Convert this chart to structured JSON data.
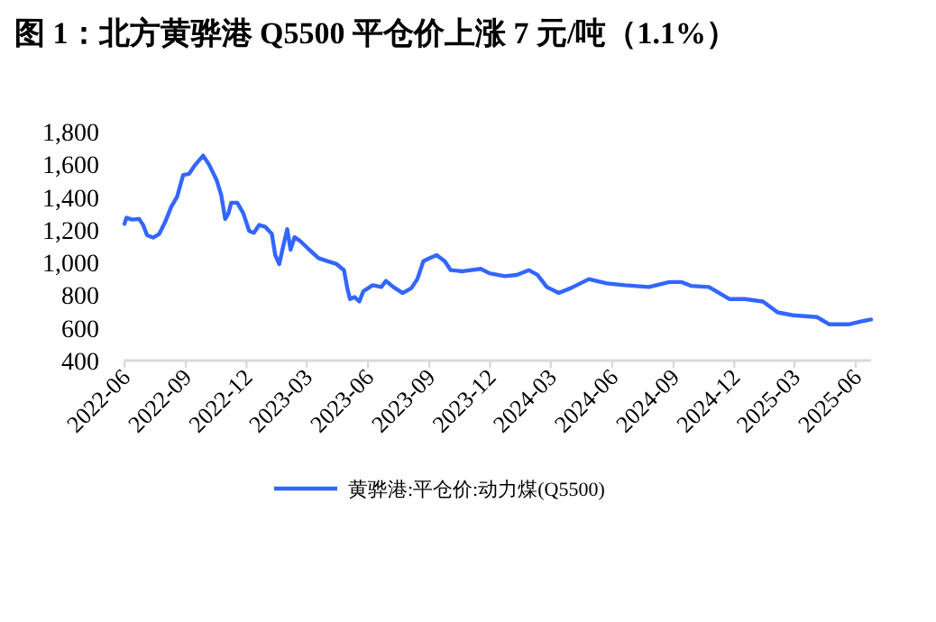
{
  "chart_data": {
    "type": "line",
    "title": "图 1：北方黄骅港 Q5500 平仓价上涨 7 元/吨（1.1%）",
    "x": [
      "2022-06-01",
      "2022-06-04",
      "2022-06-13",
      "2022-06-23",
      "2022-06-29",
      "2022-07-05",
      "2022-07-14",
      "2022-07-23",
      "2022-08-01",
      "2022-08-10",
      "2022-08-19",
      "2022-08-28",
      "2022-09-06",
      "2022-09-15",
      "2022-09-27",
      "2022-10-06",
      "2022-10-17",
      "2022-10-24",
      "2022-10-30",
      "2022-11-04",
      "2022-11-08",
      "2022-11-17",
      "2022-11-26",
      "2022-12-05",
      "2022-12-12",
      "2022-12-20",
      "2022-12-29",
      "2023-01-08",
      "2023-01-13",
      "2023-01-19",
      "2023-01-25",
      "2023-01-31",
      "2023-02-05",
      "2023-02-11",
      "2023-02-20",
      "2023-03-05",
      "2023-03-19",
      "2023-04-01",
      "2023-04-15",
      "2023-04-26",
      "2023-05-01",
      "2023-05-05",
      "2023-05-12",
      "2023-05-19",
      "2023-05-25",
      "2023-06-08",
      "2023-06-21",
      "2023-06-28",
      "2023-07-09",
      "2023-07-23",
      "2023-08-05",
      "2023-08-14",
      "2023-08-23",
      "2023-09-01",
      "2023-09-12",
      "2023-09-24",
      "2023-10-03",
      "2023-10-21",
      "2023-11-17",
      "2023-11-30",
      "2023-12-23",
      "2024-01-10",
      "2024-01-28",
      "2024-02-10",
      "2024-02-24",
      "2024-03-13",
      "2024-03-31",
      "2024-04-27",
      "2024-05-24",
      "2024-06-20",
      "2024-07-26",
      "2024-08-26",
      "2024-09-13",
      "2024-09-27",
      "2024-10-24",
      "2024-11-24",
      "2024-12-17",
      "2025-01-13",
      "2025-02-04",
      "2025-02-27",
      "2025-04-04",
      "2025-04-22",
      "2025-05-23",
      "2025-06-10",
      "2025-06-24"
    ],
    "series": [
      {
        "name": "黄骅港:平仓价:动力煤(Q5500)",
        "color": "#3366ff",
        "values": [
          1236,
          1273,
          1262,
          1266,
          1229,
          1166,
          1152,
          1174,
          1247,
          1339,
          1402,
          1535,
          1542,
          1597,
          1653,
          1597,
          1505,
          1413,
          1266,
          1302,
          1365,
          1365,
          1302,
          1192,
          1181,
          1229,
          1218,
          1174,
          1045,
          990,
          1100,
          1203,
          1078,
          1155,
          1129,
          1078,
          1026,
          1008,
          990,
          953,
          843,
          776,
          788,
          761,
          824,
          861,
          850,
          887,
          850,
          813,
          843,
          898,
          1008,
          1026,
          1045,
          1008,
          953,
          946,
          961,
          934,
          916,
          924,
          953,
          924,
          850,
          813,
          843,
          898,
          872,
          861,
          850,
          880,
          880,
          857,
          850,
          776,
          776,
          761,
          695,
          677,
          666,
          622,
          622,
          640,
          651
        ]
      }
    ],
    "xlim": [
      "2022-06-01",
      "2025-06-24"
    ],
    "xticks": [
      "2022-06",
      "2022-09",
      "2022-12",
      "2023-03",
      "2023-06",
      "2023-09",
      "2023-12",
      "2024-03",
      "2024-06",
      "2024-09",
      "2024-12",
      "2025-03",
      "2025-06"
    ],
    "ylim": [
      400,
      1800
    ],
    "yticks": [
      {
        "value": 400,
        "label": "400"
      },
      {
        "value": 600,
        "label": "600"
      },
      {
        "value": 800,
        "label": "800"
      },
      {
        "value": 1000,
        "label": "1,000"
      },
      {
        "value": 1200,
        "label": "1,200"
      },
      {
        "value": 1400,
        "label": "1,400"
      },
      {
        "value": 1600,
        "label": "1,600"
      },
      {
        "value": 1800,
        "label": "1,800"
      }
    ],
    "grid": false,
    "legend": "bottom",
    "line_style": "solid"
  }
}
